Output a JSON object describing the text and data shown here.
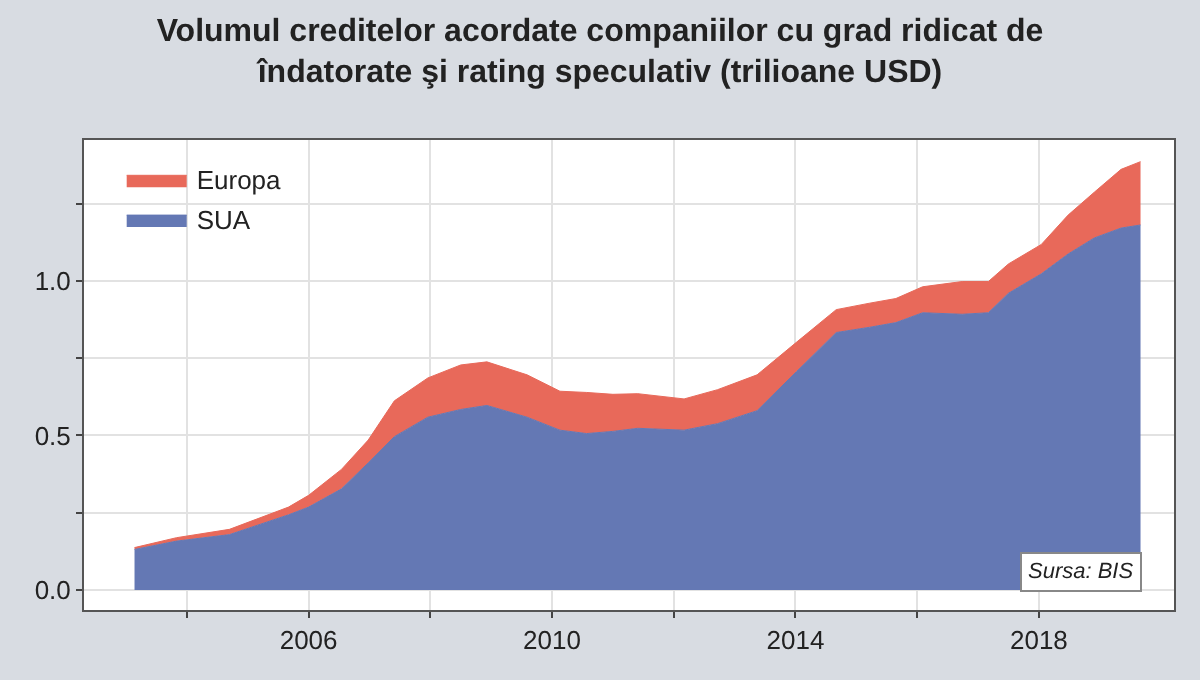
{
  "chart_data": {
    "type": "area",
    "stacked": true,
    "title": "Volumul creditelor acordate companiilor cu grad ridicat de\nîndatorate şi rating speculativ (trilioane USD)",
    "x": [
      2003.14,
      2003.83,
      2004.7,
      2005.67,
      2006.0,
      2006.54,
      2006.98,
      2007.41,
      2007.96,
      2008.5,
      2008.93,
      2009.59,
      2010.13,
      2010.57,
      2011.0,
      2011.41,
      2012.17,
      2012.72,
      2013.37,
      2014.02,
      2014.67,
      2015.22,
      2015.65,
      2016.09,
      2016.74,
      2017.17,
      2017.5,
      2018.04,
      2018.48,
      2018.91,
      2019.35,
      2019.67
    ],
    "series": [
      {
        "name": "SUA",
        "color": "#6478b4",
        "values": [
          0.131,
          0.158,
          0.179,
          0.243,
          0.268,
          0.327,
          0.411,
          0.496,
          0.559,
          0.584,
          0.597,
          0.559,
          0.517,
          0.506,
          0.513,
          0.523,
          0.517,
          0.538,
          0.58,
          0.707,
          0.833,
          0.85,
          0.865,
          0.897,
          0.892,
          0.897,
          0.96,
          1.023,
          1.087,
          1.139,
          1.171,
          1.181
        ]
      },
      {
        "name": "Europa",
        "color": "#e8695a",
        "values": [
          0.006,
          0.011,
          0.017,
          0.025,
          0.038,
          0.063,
          0.074,
          0.116,
          0.127,
          0.144,
          0.141,
          0.137,
          0.126,
          0.133,
          0.12,
          0.112,
          0.101,
          0.11,
          0.116,
          0.095,
          0.074,
          0.078,
          0.078,
          0.084,
          0.106,
          0.101,
          0.095,
          0.095,
          0.126,
          0.148,
          0.19,
          0.205
        ]
      }
    ],
    "xlim": [
      2002.31,
      2020.22
    ],
    "xticks": [
      {
        "value": 2004,
        "label": null
      },
      2006,
      {
        "value": 2008,
        "label": null
      },
      2010,
      {
        "value": 2012,
        "label": null
      },
      2014,
      {
        "value": 2016,
        "label": null
      },
      2018
    ],
    "ylim": [
      -0.065,
      1.456
    ],
    "yticks": [
      {
        "value": 0,
        "label": "0.0"
      },
      {
        "value": 0.25,
        "label": null
      },
      {
        "value": 0.5,
        "label": "0.5"
      },
      {
        "value": 0.75,
        "label": null
      },
      {
        "value": 1.0,
        "label": "1.0"
      },
      {
        "value": 1.25,
        "label": null
      }
    ],
    "grid": true,
    "legend": "top left",
    "annotations": [
      "Sursa: BIS"
    ]
  }
}
